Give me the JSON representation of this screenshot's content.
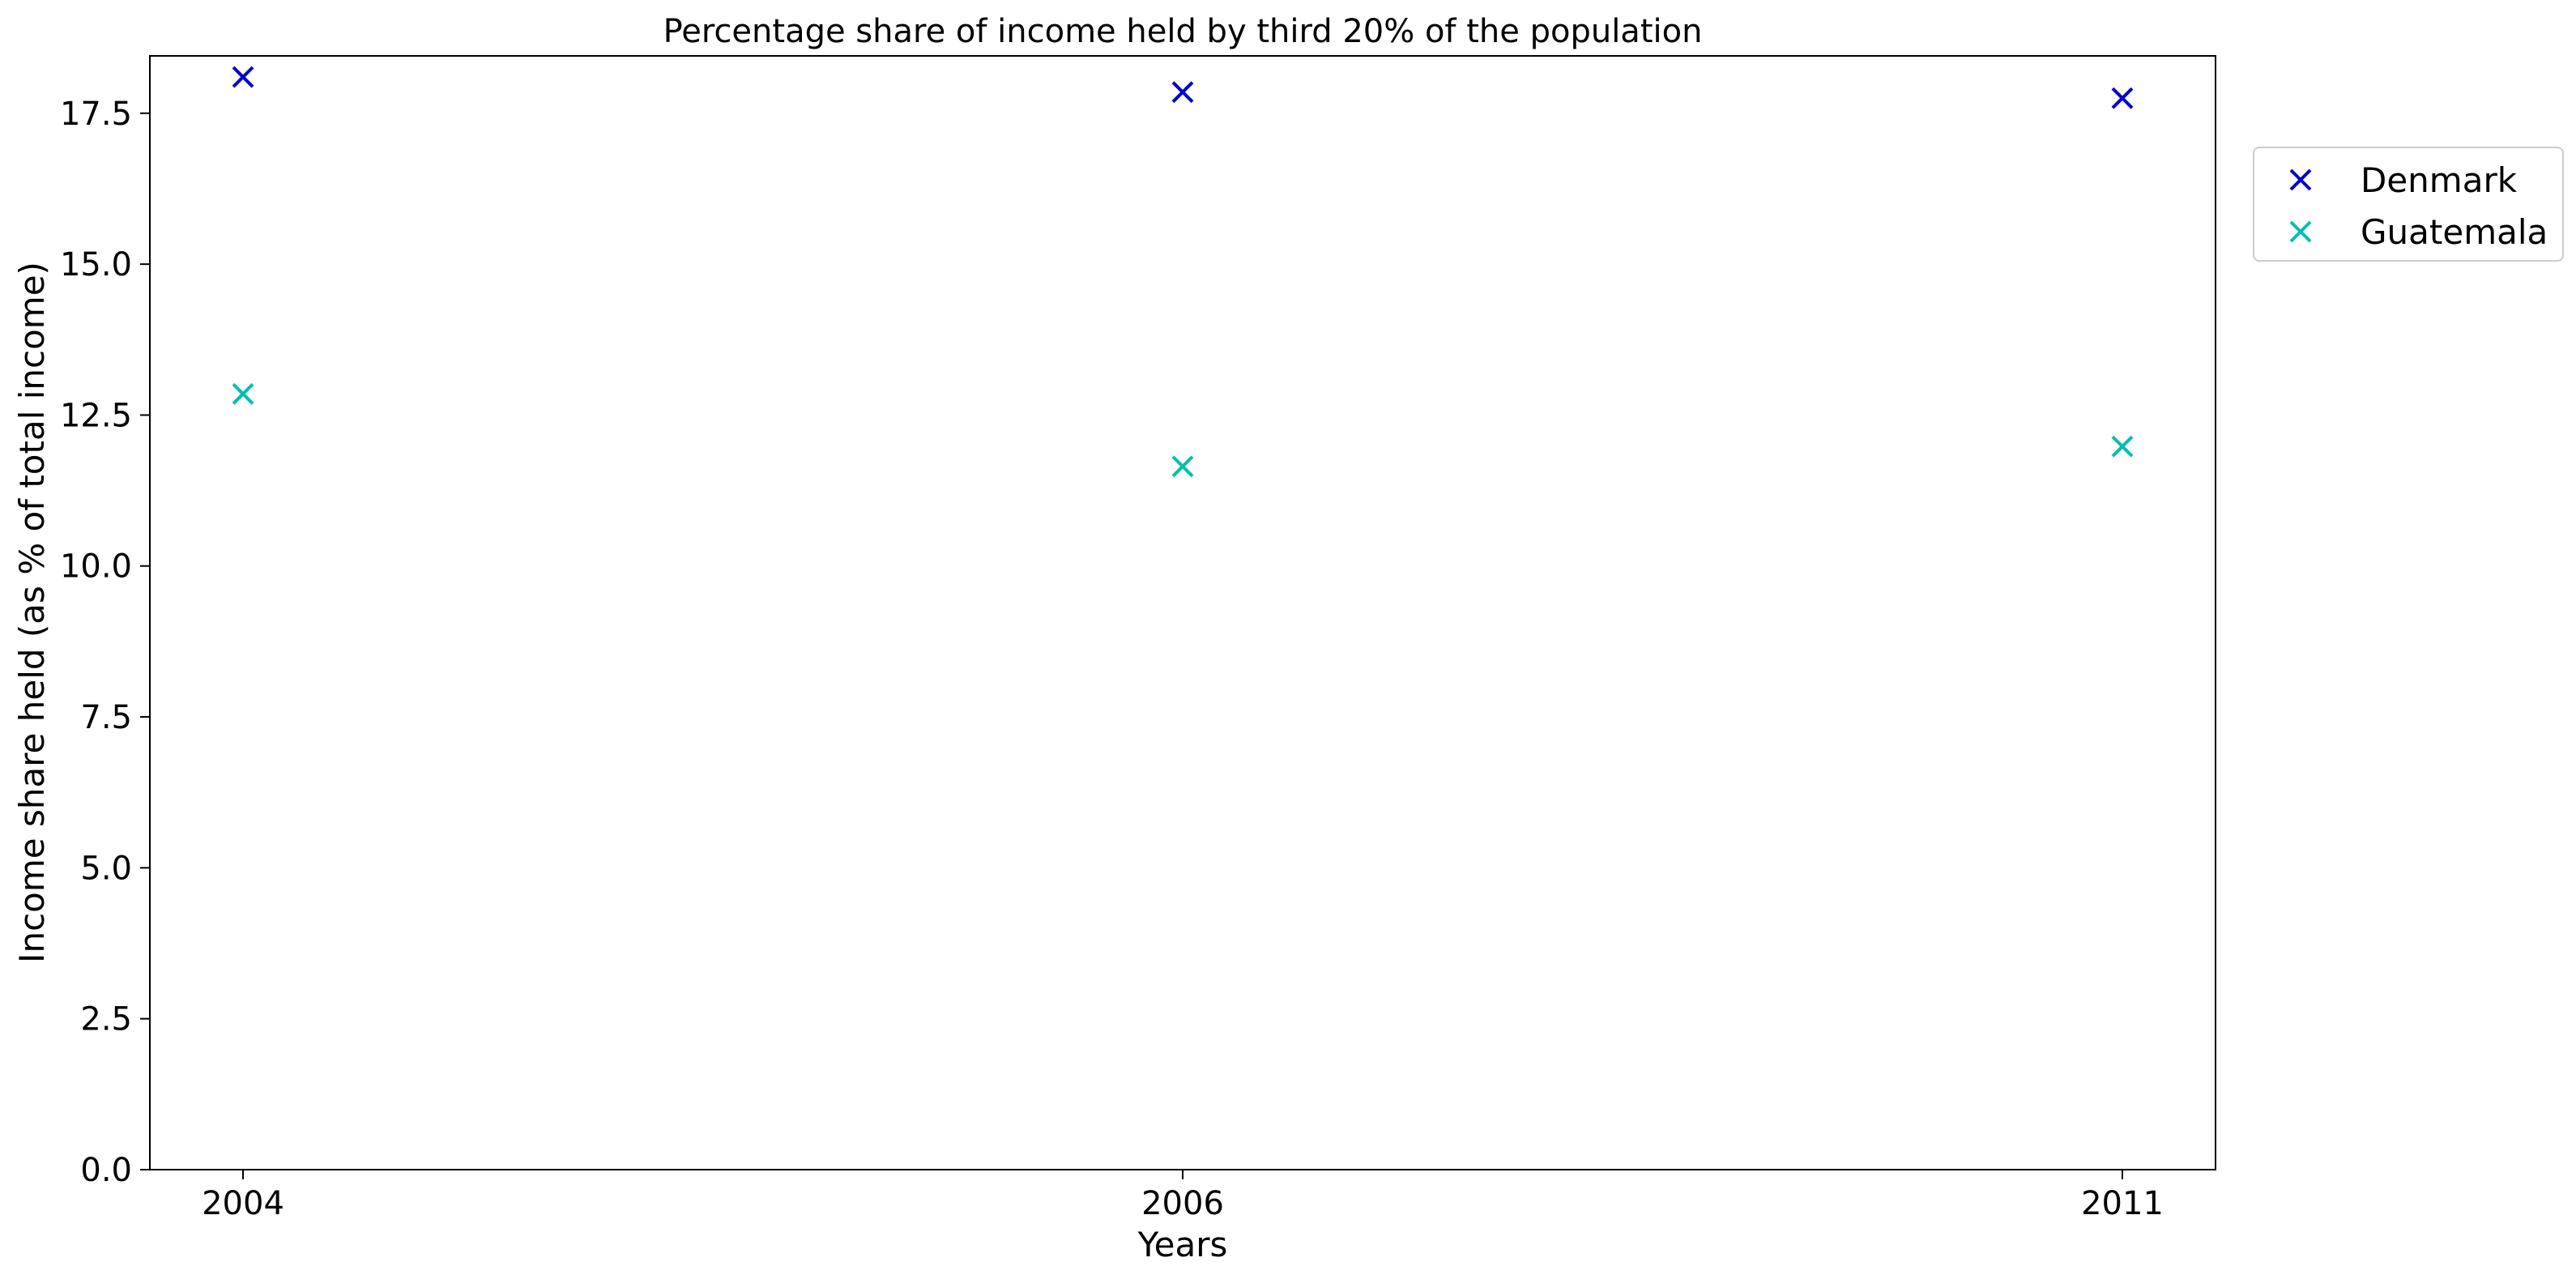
{
  "chart_data": {
    "type": "scatter",
    "title": "Percentage share of income held by third 20% of the population",
    "xlabel": "Years",
    "ylabel": "Income share held (as % of total income)",
    "categories": [
      "2004",
      "2006",
      "2011"
    ],
    "ylim": [
      0,
      18.45
    ],
    "yticks": [
      0,
      2.5,
      5,
      7.5,
      10,
      12.5,
      15,
      17.5
    ],
    "ytick_labels": [
      "0.0",
      "2.5",
      "5.0",
      "7.5",
      "10.0",
      "12.5",
      "15.0",
      "17.5"
    ],
    "marker": "x",
    "grid": false,
    "legend_position": "outside upper right",
    "series": [
      {
        "name": "Denmark",
        "color": "#0000cd",
        "values": [
          18.1,
          17.85,
          17.75
        ]
      },
      {
        "name": "Guatemala",
        "color": "#00bfae",
        "values": [
          12.85,
          11.65,
          11.98
        ]
      }
    ]
  }
}
